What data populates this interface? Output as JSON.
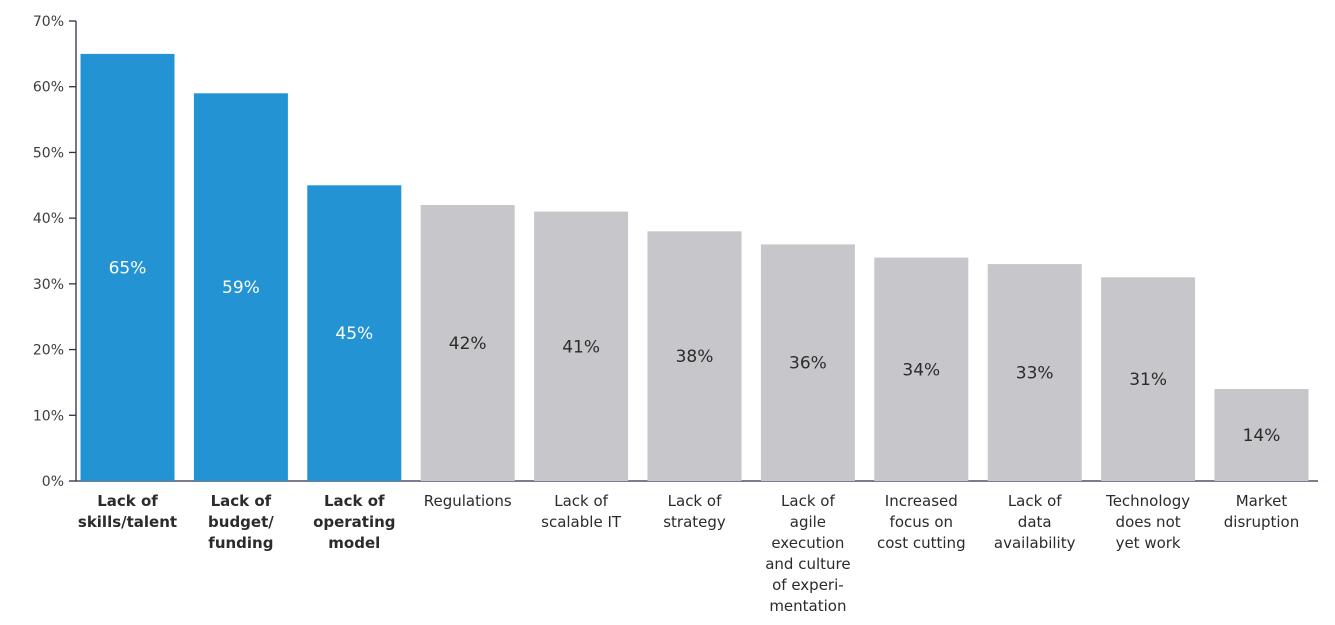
{
  "chart_data": {
    "type": "bar",
    "title": "",
    "xlabel": "",
    "ylabel": "",
    "ylim": [
      0,
      70
    ],
    "yticks": [
      "0%",
      "10%",
      "20%",
      "30%",
      "40%",
      "50%",
      "60%",
      "70%"
    ],
    "grid": false,
    "categories": [
      [
        "Lack of",
        "skills/talent"
      ],
      [
        "Lack of",
        "budget/",
        "funding"
      ],
      [
        "Lack of",
        "operating",
        "model"
      ],
      [
        "Regulations"
      ],
      [
        "Lack of",
        "scalable IT"
      ],
      [
        "Lack of",
        "strategy"
      ],
      [
        "Lack of",
        "agile",
        "execution",
        "and culture",
        "of experi-",
        "mentation"
      ],
      [
        "Increased",
        "focus on",
        "cost cutting"
      ],
      [
        "Lack of",
        "data",
        "availability"
      ],
      [
        "Technology",
        "does not",
        "yet work"
      ],
      [
        "Market",
        "disruption"
      ]
    ],
    "values": [
      65,
      59,
      45,
      42,
      41,
      38,
      36,
      34,
      33,
      31,
      14
    ],
    "labels": [
      "65%",
      "59%",
      "45%",
      "42%",
      "41%",
      "38%",
      "36%",
      "34%",
      "33%",
      "31%",
      "14%"
    ],
    "highlighted": [
      true,
      true,
      true,
      false,
      false,
      false,
      false,
      false,
      false,
      false,
      false
    ],
    "colors": {
      "highlight": "#2393d3",
      "normal": "#c6c6cb",
      "highlight_label": "#ffffff",
      "normal_label": "#2b2b2b",
      "axis": "#2e2e4a"
    }
  }
}
